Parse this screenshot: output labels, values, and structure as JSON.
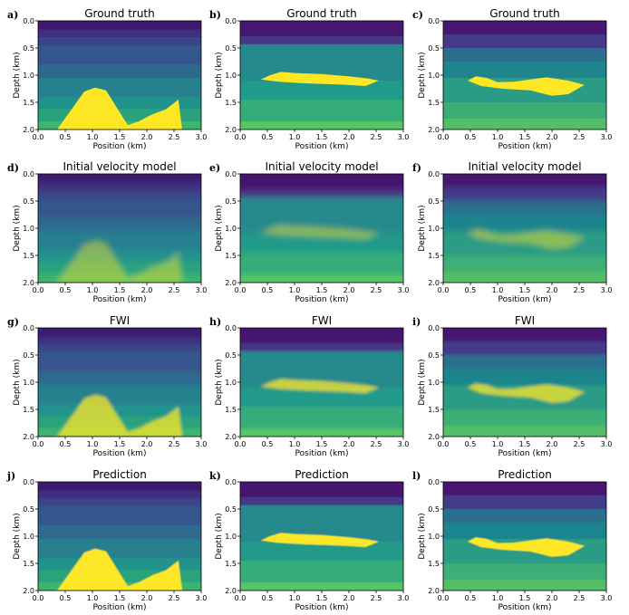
{
  "figure": {
    "rows": 4,
    "cols": 3
  },
  "colors": {
    "depth_0": "#440154",
    "depth_1": "#3b528b",
    "depth_2": "#21908d",
    "depth_3": "#5ec962",
    "anomaly": "#fde725"
  },
  "chart_data": [
    {
      "panel_label": "a)",
      "title": "Ground truth",
      "type": "heatmap",
      "model": "A",
      "stage": "truth",
      "xlabel": "Position (km)",
      "ylabel": "Depth (km)",
      "xlim": [
        0.0,
        3.0
      ],
      "ylim": [
        0.0,
        2.0
      ],
      "xticks": [
        "0.0",
        "0.5",
        "1.0",
        "1.5",
        "2.0",
        "2.5",
        "3.0"
      ],
      "yticks": [
        "0.0",
        "0.5",
        "1.0",
        "1.5",
        "2.0"
      ]
    },
    {
      "panel_label": "b)",
      "title": "Ground truth",
      "type": "heatmap",
      "model": "B",
      "stage": "truth",
      "xlabel": "Position (km)",
      "ylabel": "Depth (km)",
      "xlim": [
        0.0,
        3.0
      ],
      "ylim": [
        0.0,
        2.0
      ],
      "xticks": [
        "0.0",
        "0.5",
        "1.0",
        "1.5",
        "2.0",
        "2.5",
        "3.0"
      ],
      "yticks": [
        "0.0",
        "0.5",
        "1.0",
        "1.5",
        "2.0"
      ]
    },
    {
      "panel_label": "c)",
      "title": "Ground truth",
      "type": "heatmap",
      "model": "C",
      "stage": "truth",
      "xlabel": "Position (km)",
      "ylabel": "Depth (km)",
      "xlim": [
        0.0,
        3.0
      ],
      "ylim": [
        0.0,
        2.0
      ],
      "xticks": [
        "0.0",
        "0.5",
        "1.0",
        "1.5",
        "2.0",
        "2.5",
        "3.0"
      ],
      "yticks": [
        "0.0",
        "0.5",
        "1.0",
        "1.5",
        "2.0"
      ]
    },
    {
      "panel_label": "d)",
      "title": "Initial velocity model",
      "type": "heatmap",
      "model": "A",
      "stage": "initial",
      "xlabel": "Position (km)",
      "ylabel": "Depth (km)",
      "xlim": [
        0.0,
        3.0
      ],
      "ylim": [
        0.0,
        2.0
      ],
      "xticks": [
        "0.0",
        "0.5",
        "1.0",
        "1.5",
        "2.0",
        "2.5",
        "3.0"
      ],
      "yticks": [
        "0.0",
        "0.5",
        "1.0",
        "1.5",
        "2.0"
      ]
    },
    {
      "panel_label": "e)",
      "title": "Initial velocity model",
      "type": "heatmap",
      "model": "B",
      "stage": "initial",
      "xlabel": "Position (km)",
      "ylabel": "Depth (km)",
      "xlim": [
        0.0,
        3.0
      ],
      "ylim": [
        0.0,
        2.0
      ],
      "xticks": [
        "0.0",
        "0.5",
        "1.0",
        "1.5",
        "2.0",
        "2.5",
        "3.0"
      ],
      "yticks": [
        "0.0",
        "0.5",
        "1.0",
        "1.5",
        "2.0"
      ]
    },
    {
      "panel_label": "f)",
      "title": "Initial velocity model",
      "type": "heatmap",
      "model": "C",
      "stage": "initial",
      "xlabel": "Position (km)",
      "ylabel": "Depth (km)",
      "xlim": [
        0.0,
        3.0
      ],
      "ylim": [
        0.0,
        2.0
      ],
      "xticks": [
        "0.0",
        "0.5",
        "1.0",
        "1.5",
        "2.0",
        "2.5",
        "3.0"
      ],
      "yticks": [
        "0.0",
        "0.5",
        "1.0",
        "1.5",
        "2.0"
      ]
    },
    {
      "panel_label": "g)",
      "title": "FWI",
      "type": "heatmap",
      "model": "A",
      "stage": "fwi",
      "xlabel": "Position (km)",
      "ylabel": "Depth (km)",
      "xlim": [
        0.0,
        3.0
      ],
      "ylim": [
        0.0,
        2.0
      ],
      "xticks": [
        "0.0",
        "0.5",
        "1.0",
        "1.5",
        "2.0",
        "2.5",
        "3.0"
      ],
      "yticks": [
        "0.0",
        "0.5",
        "1.0",
        "1.5",
        "2.0"
      ]
    },
    {
      "panel_label": "h)",
      "title": "FWI",
      "type": "heatmap",
      "model": "B",
      "stage": "fwi",
      "xlabel": "Position (km)",
      "ylabel": "Depth (km)",
      "xlim": [
        0.0,
        3.0
      ],
      "ylim": [
        0.0,
        2.0
      ],
      "xticks": [
        "0.0",
        "0.5",
        "1.0",
        "1.5",
        "2.0",
        "2.5",
        "3.0"
      ],
      "yticks": [
        "0.0",
        "0.5",
        "1.0",
        "1.5",
        "2.0"
      ]
    },
    {
      "panel_label": "i)",
      "title": "FWI",
      "type": "heatmap",
      "model": "C",
      "stage": "fwi",
      "xlabel": "Position (km)",
      "ylabel": "Depth (km)",
      "xlim": [
        0.0,
        3.0
      ],
      "ylim": [
        0.0,
        2.0
      ],
      "xticks": [
        "0.0",
        "0.5",
        "1.0",
        "1.5",
        "2.0",
        "2.5",
        "3.0"
      ],
      "yticks": [
        "0.0",
        "0.5",
        "1.0",
        "1.5",
        "2.0"
      ]
    },
    {
      "panel_label": "j)",
      "title": "Prediction",
      "type": "heatmap",
      "model": "A",
      "stage": "prediction",
      "xlabel": "Position (km)",
      "ylabel": "Depth (km)",
      "xlim": [
        0.0,
        3.0
      ],
      "ylim": [
        0.0,
        2.0
      ],
      "xticks": [
        "0.0",
        "0.5",
        "1.0",
        "1.5",
        "2.0",
        "2.5",
        "3.0"
      ],
      "yticks": [
        "0.0",
        "0.5",
        "1.0",
        "1.5",
        "2.0"
      ]
    },
    {
      "panel_label": "k)",
      "title": "Prediction",
      "type": "heatmap",
      "model": "B",
      "stage": "prediction",
      "xlabel": "Position (km)",
      "ylabel": "Depth (km)",
      "xlim": [
        0.0,
        3.0
      ],
      "ylim": [
        0.0,
        2.0
      ],
      "xticks": [
        "0.0",
        "0.5",
        "1.0",
        "1.5",
        "2.0",
        "2.5",
        "3.0"
      ],
      "yticks": [
        "0.0",
        "0.5",
        "1.0",
        "1.5",
        "2.0"
      ]
    },
    {
      "panel_label": "l)",
      "title": "Prediction",
      "type": "heatmap",
      "model": "C",
      "stage": "prediction",
      "xlabel": "Position (km)",
      "ylabel": "Depth (km)",
      "xlim": [
        0.0,
        3.0
      ],
      "ylim": [
        0.0,
        2.0
      ],
      "xticks": [
        "0.0",
        "0.5",
        "1.0",
        "1.5",
        "2.0",
        "2.5",
        "3.0"
      ],
      "yticks": [
        "0.0",
        "0.5",
        "1.0",
        "1.5",
        "2.0"
      ]
    }
  ],
  "models": {
    "A": {
      "layers": [
        {
          "top": 0.0,
          "color": "#3d1a6e"
        },
        {
          "top": 0.16,
          "color": "#3f2f80"
        },
        {
          "top": 0.3,
          "color": "#3a4588"
        },
        {
          "top": 0.45,
          "color": "#34568c"
        },
        {
          "top": 0.8,
          "color": "#2d698e"
        },
        {
          "top": 1.05,
          "color": "#26808e"
        },
        {
          "top": 1.4,
          "color": "#20928c"
        },
        {
          "top": 1.62,
          "color": "#2aa37d"
        },
        {
          "top": 1.85,
          "color": "#3db56f"
        }
      ],
      "anomaly_poly": [
        [
          0.35,
          2.0
        ],
        [
          0.6,
          1.65
        ],
        [
          0.85,
          1.3
        ],
        [
          1.05,
          1.23
        ],
        [
          1.25,
          1.28
        ],
        [
          1.45,
          1.6
        ],
        [
          1.65,
          1.92
        ],
        [
          1.85,
          1.85
        ],
        [
          2.1,
          1.72
        ],
        [
          2.35,
          1.63
        ],
        [
          2.58,
          1.45
        ],
        [
          2.65,
          2.0
        ]
      ]
    },
    "B": {
      "layers": [
        {
          "top": 0.0,
          "color": "#45186e"
        },
        {
          "top": 0.28,
          "color": "#463686"
        },
        {
          "top": 0.43,
          "color": "#258a8c"
        },
        {
          "top": 1.1,
          "color": "#209a8a"
        },
        {
          "top": 1.45,
          "color": "#34ac7a"
        },
        {
          "top": 1.85,
          "color": "#55c566"
        }
      ],
      "anomaly_poly": [
        [
          0.38,
          1.08
        ],
        [
          0.55,
          1.0
        ],
        [
          0.75,
          0.94
        ],
        [
          1.0,
          0.96
        ],
        [
          1.5,
          0.98
        ],
        [
          2.0,
          1.02
        ],
        [
          2.35,
          1.06
        ],
        [
          2.55,
          1.1
        ],
        [
          2.3,
          1.2
        ],
        [
          1.8,
          1.17
        ],
        [
          1.2,
          1.15
        ],
        [
          0.7,
          1.12
        ]
      ]
    },
    "C": {
      "layers": [
        {
          "top": 0.0,
          "color": "#46186e"
        },
        {
          "top": 0.25,
          "color": "#433b8a"
        },
        {
          "top": 0.5,
          "color": "#2b6f8e"
        },
        {
          "top": 0.75,
          "color": "#1f848d"
        },
        {
          "top": 1.05,
          "color": "#2a9b84"
        },
        {
          "top": 1.5,
          "color": "#3cae74"
        },
        {
          "top": 1.8,
          "color": "#52bf68"
        }
      ],
      "anomaly_poly": [
        [
          0.45,
          1.1
        ],
        [
          0.6,
          1.02
        ],
        [
          0.8,
          1.05
        ],
        [
          1.0,
          1.13
        ],
        [
          1.3,
          1.12
        ],
        [
          1.6,
          1.08
        ],
        [
          1.9,
          1.04
        ],
        [
          2.3,
          1.1
        ],
        [
          2.6,
          1.18
        ],
        [
          2.3,
          1.35
        ],
        [
          2.0,
          1.38
        ],
        [
          1.6,
          1.28
        ],
        [
          1.1,
          1.25
        ],
        [
          0.7,
          1.2
        ]
      ]
    }
  }
}
